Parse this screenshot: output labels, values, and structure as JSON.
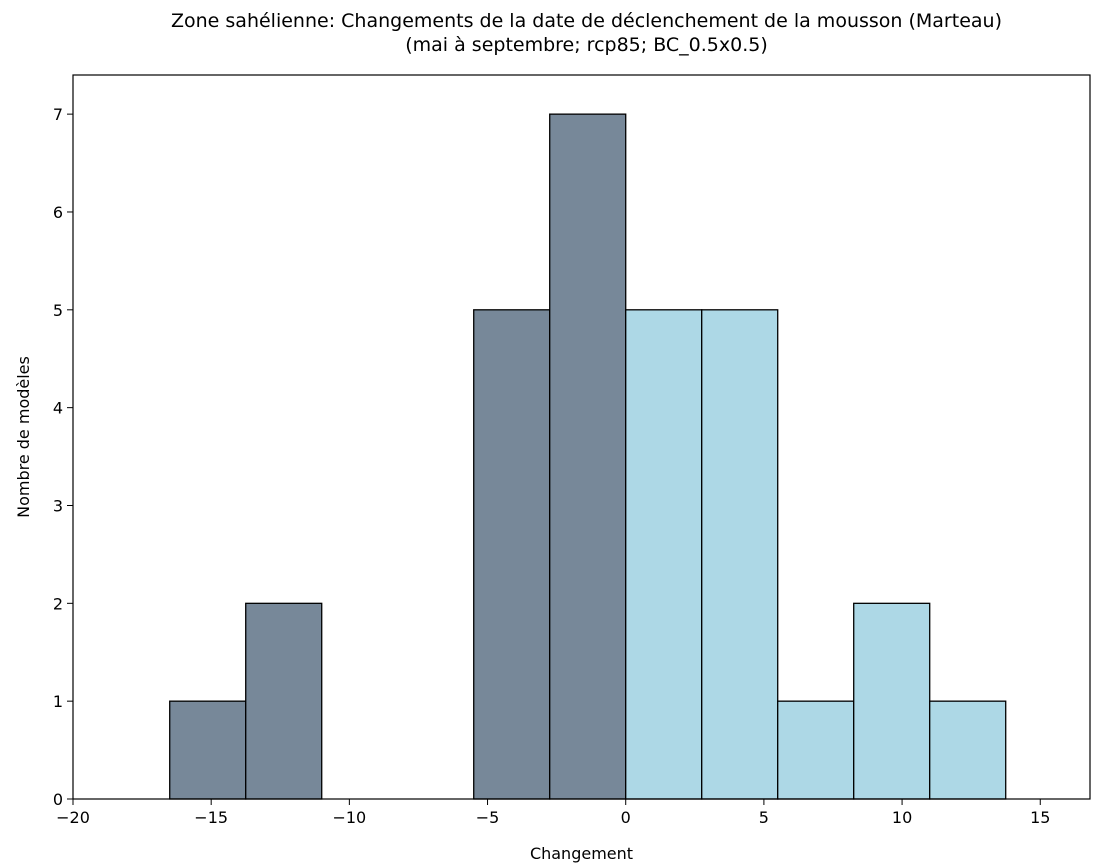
{
  "chart_data": {
    "type": "bar",
    "title": "Zone sahélienne: Changements de la date de déclenchement de la mousson (Marteau)",
    "subtitle": "(mai à septembre; rcp85; BC_0.5x0.5)",
    "xlabel": "Changement",
    "ylabel": "Nombre de modèles",
    "xlim": [
      -20,
      16.8
    ],
    "ylim": [
      0,
      7.4
    ],
    "x_ticks": [
      "−20",
      "−15",
      "−10",
      "−5",
      "0",
      "5",
      "10",
      "15"
    ],
    "x_tick_values": [
      -20,
      -15,
      -10,
      -5,
      0,
      5,
      10,
      15
    ],
    "y_ticks": [
      "0",
      "1",
      "2",
      "3",
      "4",
      "5",
      "6",
      "7"
    ],
    "y_tick_values": [
      0,
      1,
      2,
      3,
      4,
      5,
      6,
      7
    ],
    "grid": false,
    "bins": [
      {
        "x0": -16.5,
        "x1": -13.75,
        "value": 1,
        "group": "negative"
      },
      {
        "x0": -13.75,
        "x1": -11.0,
        "value": 2,
        "group": "negative"
      },
      {
        "x0": -11.0,
        "x1": -8.25,
        "value": 0,
        "group": "negative"
      },
      {
        "x0": -8.25,
        "x1": -5.5,
        "value": 0,
        "group": "negative"
      },
      {
        "x0": -5.5,
        "x1": -2.75,
        "value": 5,
        "group": "negative"
      },
      {
        "x0": -2.75,
        "x1": 0.0,
        "value": 7,
        "group": "negative"
      },
      {
        "x0": 0.0,
        "x1": 2.75,
        "value": 5,
        "group": "positive"
      },
      {
        "x0": 2.75,
        "x1": 5.5,
        "value": 5,
        "group": "positive"
      },
      {
        "x0": 5.5,
        "x1": 8.25,
        "value": 1,
        "group": "positive"
      },
      {
        "x0": 8.25,
        "x1": 11.0,
        "value": 2,
        "group": "positive"
      },
      {
        "x0": 11.0,
        "x1": 13.75,
        "value": 1,
        "group": "positive"
      },
      {
        "x0": 13.75,
        "x1": 16.5,
        "value": 0,
        "group": "positive"
      }
    ],
    "colors": {
      "negative": "#778899",
      "positive": "#add8e6",
      "edge": "#000000"
    }
  }
}
